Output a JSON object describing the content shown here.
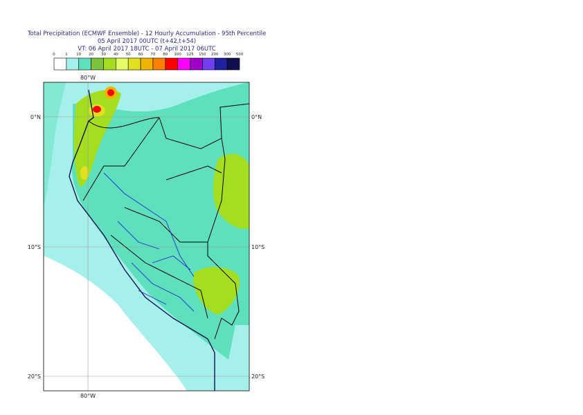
{
  "header": {
    "title": "Total Precipitation (ECMWF Ensemble) - 12 Hourly Accumulation - 95th Percentile",
    "subtitle": "05 April 2017 00UTC (t+42,t+54)",
    "valid_time": "VT: 06 April 2017 18UTC - 07 April 2017 06UTC"
  },
  "legend": {
    "labels": [
      0,
      1,
      10,
      20,
      30,
      40,
      50,
      60,
      70,
      80,
      100,
      125,
      150,
      200,
      300,
      500
    ],
    "colors": [
      "#ffffff",
      "#a6f0ec",
      "#5fe0bc",
      "#7cc23c",
      "#a4de1e",
      "#e2fc64",
      "#e0e020",
      "#f0b400",
      "#ff8000",
      "#ff0000",
      "#ff00ff",
      "#a000c8",
      "#7040f0",
      "#2020a0",
      "#101050"
    ]
  },
  "map": {
    "lon_labels": [
      "80°W"
    ],
    "lat_labels": [
      "0°N",
      "10°S",
      "20°S"
    ]
  }
}
